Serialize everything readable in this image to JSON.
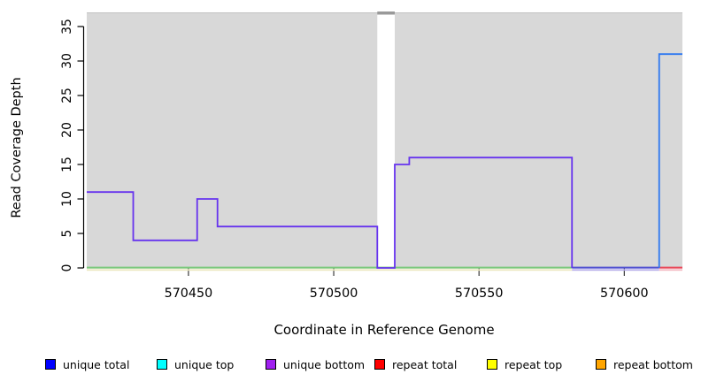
{
  "chart_data": {
    "type": "line",
    "subtype": "step",
    "title": "",
    "xlabel": "Coordinate in Reference Genome",
    "ylabel": "Read Coverage Depth",
    "xlim": [
      570415,
      570620
    ],
    "ylim": [
      0,
      35
    ],
    "x_ticks": [
      570450,
      570500,
      570550,
      570600
    ],
    "y_ticks": [
      0,
      5,
      10,
      15,
      20,
      25,
      30,
      35
    ],
    "grid": false,
    "legend_position": "bottom",
    "plot_background": "#D8D8D8",
    "coverage_gap": {
      "x_start": 570515,
      "x_end": 570521
    },
    "series": [
      {
        "name": "unique total",
        "color": "#0000FF",
        "steps": [
          [
            570415,
            11
          ],
          [
            570431,
            4
          ],
          [
            570453,
            10
          ],
          [
            570460,
            6
          ],
          [
            570515,
            0
          ],
          [
            570521,
            15
          ],
          [
            570526,
            16
          ],
          [
            570582,
            0
          ],
          [
            570612,
            31
          ]
        ],
        "end_x": 570620
      },
      {
        "name": "unique top",
        "color": "#00FFFF",
        "steps": [
          [
            570415,
            0
          ],
          [
            570612,
            31
          ]
        ],
        "end_x": 570620
      },
      {
        "name": "unique bottom",
        "color": "#A020F0",
        "steps": [
          [
            570415,
            11
          ],
          [
            570431,
            4
          ],
          [
            570453,
            10
          ],
          [
            570460,
            6
          ],
          [
            570515,
            0
          ],
          [
            570521,
            15
          ],
          [
            570526,
            16
          ],
          [
            570582,
            0
          ]
        ],
        "end_x": 570612
      },
      {
        "name": "repeat total",
        "color": "#FF0000",
        "steps": [
          [
            570415,
            0
          ]
        ],
        "end_x": 570620
      },
      {
        "name": "repeat top",
        "color": "#FFFF00",
        "steps": [
          [
            570415,
            0
          ]
        ],
        "end_x": 570620
      },
      {
        "name": "repeat bottom",
        "color": "#FFA500",
        "steps": [
          [
            570415,
            0
          ]
        ],
        "end_x": 570620
      }
    ]
  },
  "render": {
    "bg_top_edge_color": "#C2C2C2",
    "gap_cap_color": "#999999",
    "axis_color": "#000000",
    "tick_color": "#3a3a3a",
    "zero_segments": [
      {
        "name": "zero-line-green",
        "x_start": 570415,
        "x_end": 570582,
        "color": "#7CC87C",
        "under_color": "#ECE7C0"
      },
      {
        "name": "zero-line-indigo",
        "x_start": 570582,
        "x_end": 570612,
        "color": "#5252D0",
        "under_color": "#B6AEE9"
      },
      {
        "name": "zero-line-red",
        "x_start": 570612,
        "x_end": 570620,
        "color": "#E84A5A",
        "under_color": "#F3B9C2"
      }
    ],
    "paths": [
      {
        "name": "unique-bottom-line",
        "color": "#6633EE",
        "steps": [
          [
            570415,
            11
          ],
          [
            570431,
            4
          ],
          [
            570453,
            10
          ],
          [
            570460,
            6
          ],
          [
            570515,
            0
          ],
          [
            570521,
            15
          ],
          [
            570526,
            16
          ],
          [
            570582,
            0
          ]
        ],
        "end_x": 570582
      },
      {
        "name": "unique-top-total-line",
        "color": "#2E78F0",
        "steps": [
          [
            570612,
            0
          ],
          [
            570612,
            31
          ]
        ],
        "end_x": 570620
      }
    ]
  },
  "legend": {
    "items": [
      {
        "label": "unique total",
        "color": "#0000FF"
      },
      {
        "label": "unique top",
        "color": "#00FFFF"
      },
      {
        "label": "unique bottom",
        "color": "#A020F0"
      },
      {
        "label": "repeat total",
        "color": "#FF0000"
      },
      {
        "label": "repeat top",
        "color": "#FFFF00"
      },
      {
        "label": "repeat bottom",
        "color": "#FFA500"
      }
    ]
  }
}
